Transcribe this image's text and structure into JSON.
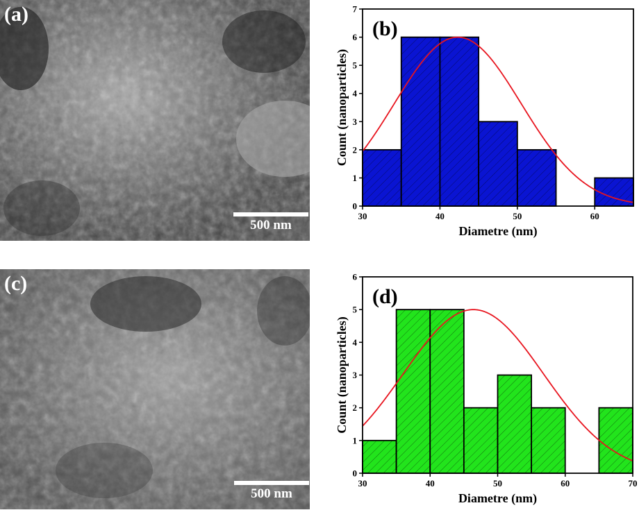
{
  "panels": {
    "a": {
      "label": "(a)",
      "scale_label": "500 nm"
    },
    "c": {
      "label": "(c)",
      "scale_label": "500 nm"
    }
  },
  "chart_data": [
    {
      "panel_label": "(b)",
      "type": "bar",
      "bin_edges": [
        30,
        35,
        40,
        45,
        50,
        55,
        60,
        65
      ],
      "values": [
        2,
        6,
        6,
        3,
        2,
        0,
        1
      ],
      "fit": {
        "type": "gaussian",
        "peak": 6,
        "mean": 42.3,
        "sigma": 8.2
      },
      "xlabel": "Diametre (nm)",
      "ylabel": "Count (nanoparticles)",
      "xlim": [
        30,
        65
      ],
      "ylim": [
        0,
        7
      ],
      "xticks": [
        30,
        40,
        50,
        60
      ],
      "yticks": [
        0,
        1,
        2,
        3,
        4,
        5,
        6,
        7
      ],
      "bar_color": "#0a14d2",
      "fit_color": "#e8141e",
      "grid": false
    },
    {
      "panel_label": "(d)",
      "type": "bar",
      "bin_edges": [
        30,
        35,
        40,
        45,
        50,
        55,
        60,
        65,
        70
      ],
      "values": [
        1,
        5,
        5,
        2,
        3,
        2,
        0,
        2
      ],
      "fit": {
        "type": "gaussian",
        "peak": 5,
        "mean": 46.4,
        "sigma": 10.4
      },
      "xlabel": "Diametre (nm)",
      "ylabel": "Count (nanoparticles)",
      "xlim": [
        30,
        70
      ],
      "ylim": [
        0,
        6
      ],
      "xticks": [
        30,
        40,
        50,
        60,
        70
      ],
      "yticks": [
        0,
        1,
        2,
        3,
        4,
        5,
        6
      ],
      "bar_color": "#22e41c",
      "fit_color": "#e8141e",
      "grid": false
    }
  ]
}
